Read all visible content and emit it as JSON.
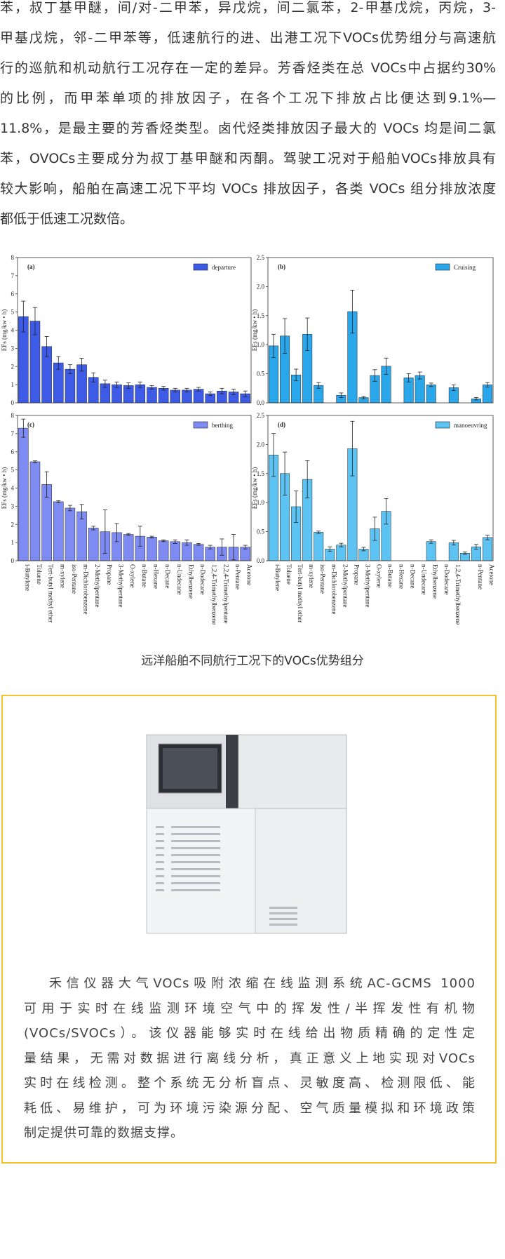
{
  "article": {
    "lines": [
      "苯，叔丁基甲醚，间/对-二甲苯，异戊烷，间二氯苯，2-甲基戊烷，丙烷，3-",
      "甲基戊烷，邻-二甲苯等，低速航行的进、出港工况下VOCs优势组分与高速航",
      "行的巡航和机动航行工况存在一定的差异。芳香烃类在总 VOCs中占据约30%",
      "的比例，而甲苯单项的排放因子，在各个工况下排放占比便达到9.1%—",
      "11.8%，是最主要的芳香烃类型。卤代烃类排放因子最大的 VOCs 均是间二氯",
      "苯，OVOCs主要成分为叔丁基甲醚和丙酮。驾驶工况对于船舶VOCs排放具有",
      "较大影响，船舶在高速工况下平均 VOCs 排放因子，各类 VOCs 组分排放浓度",
      "都低于低速工况数倍。"
    ]
  },
  "chart_data": [
    {
      "type": "bar",
      "panel_label": "(a)",
      "ylabel": "EFs (mg/kw • h)",
      "ylim": [
        0,
        8
      ],
      "yticks": [
        0,
        1,
        2,
        3,
        4,
        5,
        6,
        7,
        8
      ],
      "series": [
        {
          "name": "departure",
          "color": "#3d5be6",
          "values": [
            4.75,
            4.5,
            3.1,
            2.2,
            1.85,
            2.1,
            1.4,
            1.05,
            1.0,
            0.95,
            1.0,
            0.85,
            0.8,
            0.7,
            0.7,
            0.75,
            0.5,
            0.65,
            0.6,
            0.5
          ],
          "errors": [
            0.85,
            0.75,
            0.55,
            0.35,
            0.25,
            0.35,
            0.25,
            0.2,
            0.15,
            0.15,
            0.15,
            0.1,
            0.1,
            0.1,
            0.1,
            0.1,
            0.1,
            0.15,
            0.15,
            0.15
          ]
        }
      ]
    },
    {
      "type": "bar",
      "panel_label": "(b)",
      "ylabel": "EFs (mg/kw • h)",
      "ylim": [
        0,
        2.5
      ],
      "yticks": [
        {
          "value": 0,
          "label": "0.0"
        },
        {
          "value": 0.5,
          "label": "0.5"
        },
        {
          "value": 1,
          "label": "1.0"
        },
        {
          "value": 1.5,
          "label": "1.5"
        },
        {
          "value": 2,
          "label": "2.0"
        },
        {
          "value": 2.5,
          "label": "2.5"
        }
      ],
      "series": [
        {
          "name": "Cruising",
          "color": "#2aa6ea",
          "values": [
            0.98,
            1.15,
            0.48,
            1.18,
            0.3,
            null,
            0.13,
            1.57,
            0.09,
            0.47,
            0.63,
            null,
            0.43,
            0.47,
            0.31,
            null,
            0.26,
            null,
            0.07,
            0.31
          ],
          "errors": [
            0.2,
            0.3,
            0.1,
            0.28,
            0.05,
            null,
            0.04,
            0.37,
            0.02,
            0.1,
            0.14,
            null,
            0.07,
            0.06,
            0.03,
            null,
            0.05,
            null,
            0.02,
            0.04
          ]
        }
      ]
    },
    {
      "type": "bar",
      "panel_label": "(c)",
      "ylabel": "EFs (mg/kw • h)",
      "ylim": [
        0,
        8
      ],
      "yticks": [
        0,
        1,
        2,
        3,
        4,
        5,
        6,
        7,
        8
      ],
      "categories": [
        "i-Butylene",
        "Toluene",
        "Tert-butyl methyl ether",
        "m-xylene",
        "iso-Pentane",
        "m-Dichlorobenzene",
        "2-Methylpentane",
        "Propane",
        "3-Methylpentane",
        "O-xylene",
        "n-Butane",
        "n-Hexane",
        "n-Decane",
        "n-Undecane",
        "Ethylbenzene",
        "n-Dodecane",
        "1,2,4-Trimethylbenzene",
        "2,2,4-Trimethylpentane",
        "n-Pentane",
        "Acetone"
      ],
      "series": [
        {
          "name": "berthing",
          "color": "#7d8bf2",
          "values": [
            7.3,
            5.45,
            4.2,
            3.25,
            2.9,
            2.7,
            1.8,
            1.6,
            1.55,
            1.45,
            1.35,
            1.3,
            1.1,
            1.05,
            1.0,
            0.9,
            0.75,
            0.75,
            0.75,
            0.75
          ],
          "errors": [
            0.5,
            0.05,
            0.7,
            0.05,
            0.15,
            0.4,
            0.1,
            1.2,
            0.5,
            0.05,
            0.55,
            0.05,
            0.05,
            0.1,
            0.15,
            0.05,
            0.1,
            0.45,
            0.7,
            0.1
          ]
        }
      ]
    },
    {
      "type": "bar",
      "panel_label": "(d)",
      "ylabel": "EFs (mg/kw • h)",
      "ylim": [
        0,
        2.5
      ],
      "yticks": [
        {
          "value": 0,
          "label": "0.0"
        },
        {
          "value": 0.5,
          "label": "0.5"
        },
        {
          "value": 1,
          "label": "1.0"
        },
        {
          "value": 1.5,
          "label": "1.5"
        },
        {
          "value": 2,
          "label": "2.0"
        },
        {
          "value": 2.5,
          "label": "2.5"
        }
      ],
      "categories": [
        "i-Butylene",
        "Toluene",
        "Tert-butyl methyl ether",
        "m-xylene",
        "iso-Pentane",
        "m-Dichlorobenzene",
        "2-Methylpentane",
        "Propane",
        "3-Methylpentane",
        "O-xylene",
        "n-Butane",
        "n-Hexane",
        "n-Decane",
        "n-Undecane",
        "Ethylbenzene",
        "n-Dodecane",
        "1,2,4-Trimethylbenzene",
        null,
        "n-Pentane",
        "Acetone"
      ],
      "series": [
        {
          "name": "manoeuvring",
          "color": "#5cc3f2",
          "values": [
            1.82,
            1.5,
            0.93,
            1.4,
            0.49,
            0.2,
            0.27,
            1.93,
            0.2,
            0.55,
            0.85,
            null,
            null,
            null,
            0.33,
            null,
            0.31,
            0.13,
            0.24,
            0.4
          ],
          "errors": [
            0.37,
            0.37,
            0.27,
            0.32,
            0.02,
            0.04,
            0.03,
            0.47,
            0.03,
            0.2,
            0.22,
            null,
            null,
            null,
            0.03,
            null,
            0.04,
            0.02,
            0.04,
            0.04
          ]
        }
      ]
    }
  ],
  "figure_caption": "远洋船舶不同航行工况下的VOCs优势组分",
  "promo": {
    "lines": [
      "禾信仪器大气VOCs吸附浓缩在线监测系统AC-GCMS 1000",
      "可用于实时在线监测环境空气中的挥发性/半挥发性有机物",
      "(VOCs/SVOCs）。该仪器能够实时在线给出物质精确的定性定",
      "量结果，无需对数据进行离线分析，真正意义上地实现对VOCs",
      "实时在线检测。整个系统无分析盲点、灵敏度高、检测限低、能",
      "耗低、易维护，可为环境污染源分配、空气质量模拟和环境政策",
      "制定提供可靠的数据支撑。"
    ]
  }
}
